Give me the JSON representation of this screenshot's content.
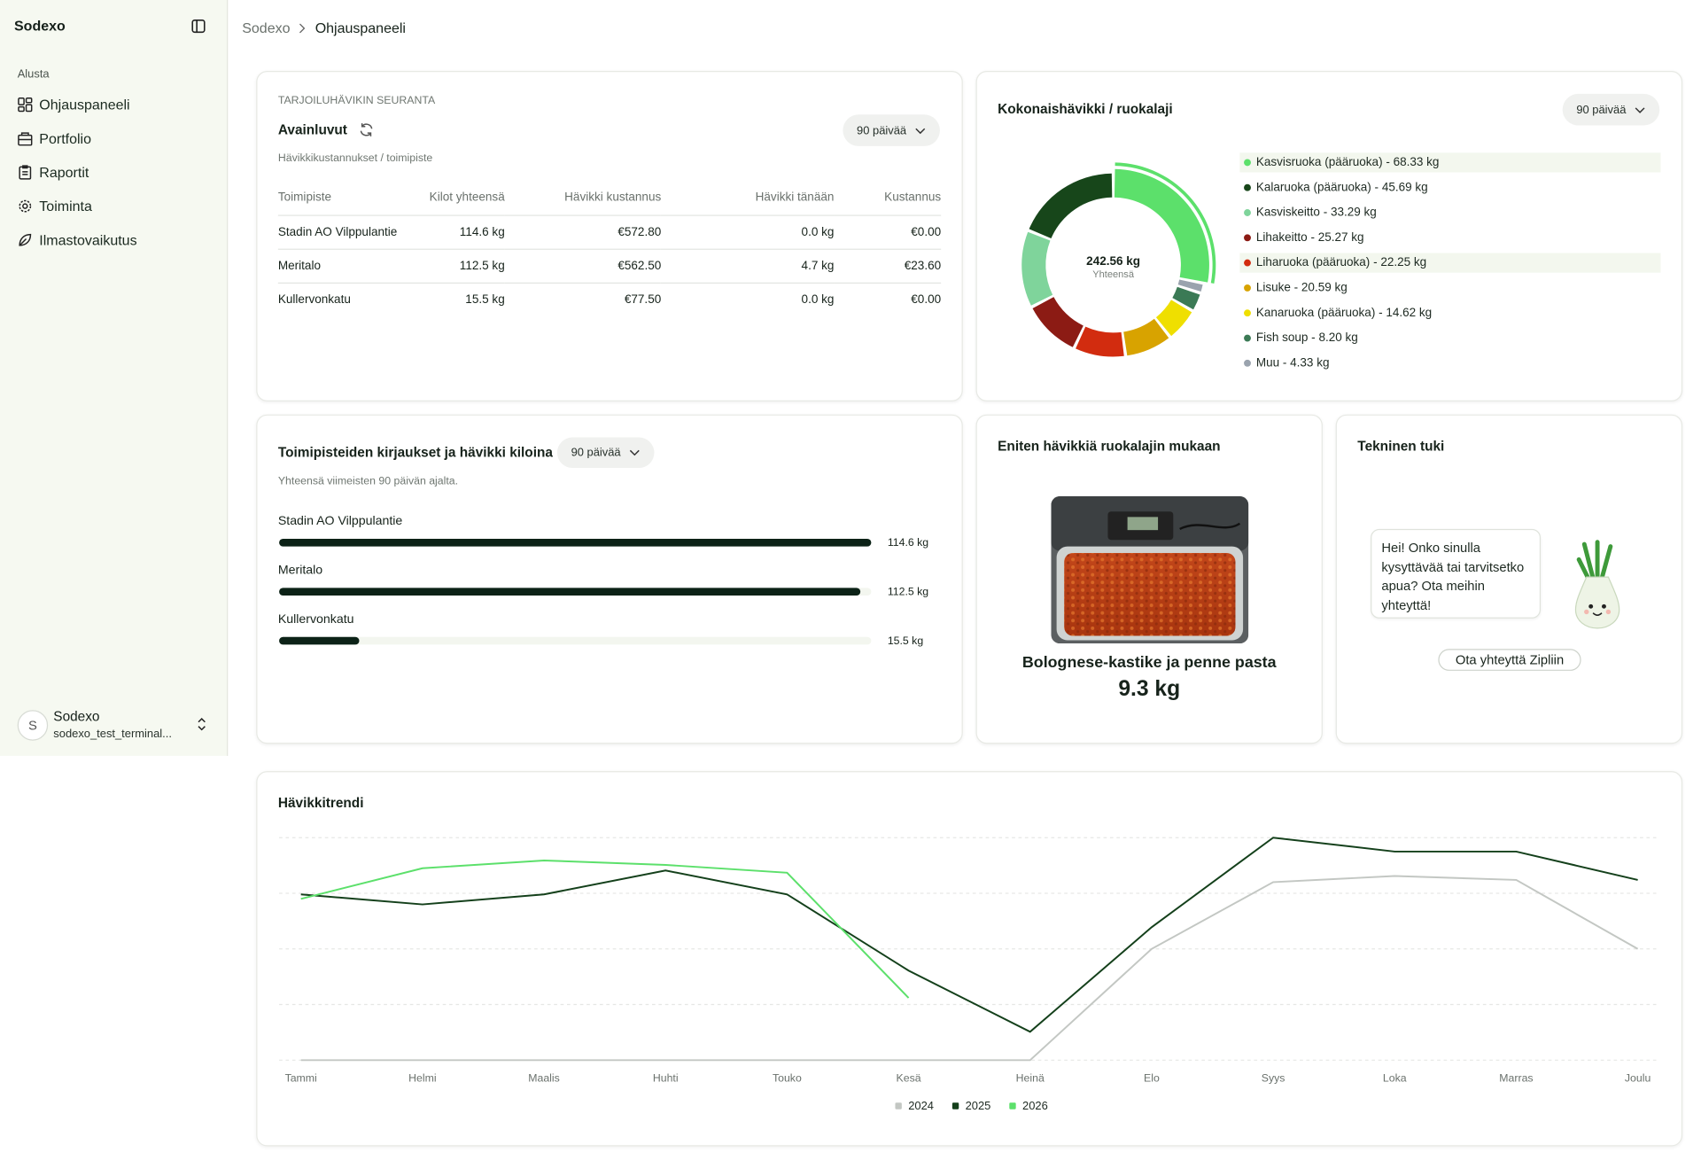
{
  "sidebar": {
    "brand": "Sodexo",
    "section": "Alusta",
    "nav": [
      "Ohjauspaneeli",
      "Portfolio",
      "Raportit",
      "Toiminta",
      "Ilmastovaikutus"
    ],
    "user": {
      "avatar": "S",
      "name": "Sodexo",
      "email": "sodexo_test_terminal..."
    }
  },
  "breadcrumb": [
    "Sodexo",
    "Ohjauspaneeli"
  ],
  "key_figures": {
    "eyebrow": "TARJOILUHÄVIKIN SEURANTA",
    "title": "Avainluvut",
    "period": "90 päivää",
    "subtitle": "Hävikkikustannukset / toimipiste",
    "table": {
      "header": [
        "Toimipiste",
        "Kilot yhteensä",
        "Hävikki kustannus",
        "Hävikki tänään",
        "Kustannus"
      ],
      "rows": [
        [
          "Stadin AO Vilppulantie",
          "114.6 kg",
          "€572.80",
          "0.0 kg",
          "€0.00"
        ],
        [
          "Meritalo",
          "112.5 kg",
          "€562.50",
          "4.7 kg",
          "€23.60"
        ],
        [
          "Kullervonkatu",
          "15.5 kg",
          "€77.50",
          "0.0 kg",
          "€0.00"
        ]
      ]
    }
  },
  "chart_data": [
    {
      "type": "donut",
      "title": "Kokonaishävikki / ruokalaji",
      "period": "90 päivää",
      "total_label": "242.56 kg",
      "total_caption": "Yhteensä",
      "categories": [
        "Kasvisruoka (pääruoka) - 68.33 kg",
        "Kalaruoka (pääruoka) - 45.69 kg",
        "Kasviskeitto - 33.29 kg",
        "Lihakeitto - 25.27 kg",
        "Liharuoka (pääruoka) - 22.25 kg",
        "Lisuke - 20.59 kg",
        "Kanaruoka (pääruoka) - 14.62 kg",
        "Fish soup - 8.20 kg",
        "Muu - 4.33 kg"
      ],
      "values": [
        68.33,
        45.69,
        33.29,
        25.27,
        22.25,
        20.59,
        14.62,
        8.2,
        4.33
      ],
      "colors": [
        "#5ce06b",
        "#17461a",
        "#7fd49b",
        "#8c1b14",
        "#d22c0f",
        "#d8a300",
        "#efdf00",
        "#3b7a55",
        "#9aa3ae"
      ]
    },
    {
      "type": "hbar",
      "title": "Toimipisteiden kirjaukset ja hävikki kiloina",
      "period": "90 päivää",
      "subtitle": "Yhteensä viimeisten 90 päivän ajalta.",
      "categories": [
        "Stadin AO Vilppulantie",
        "Meritalo",
        "Kullervonkatu"
      ],
      "values": [
        114.6,
        112.5,
        15.5
      ],
      "value_labels": [
        "114.6 kg",
        "112.5 kg",
        "15.5 kg"
      ],
      "xlim": [
        0,
        114.6
      ],
      "color": "#0c2217"
    },
    {
      "type": "line",
      "title": "Hävikkitrendi",
      "categories": [
        "Tammi",
        "Helmi",
        "Maalis",
        "Huhti",
        "Touko",
        "Kesä",
        "Heinä",
        "Elo",
        "Syys",
        "Loka",
        "Marras",
        "Joulu"
      ],
      "ylim": [
        0,
        4
      ],
      "series": [
        {
          "name": "2024",
          "color": "#c3c7c3",
          "values": [
            0,
            0,
            0,
            0,
            0,
            0,
            0,
            2.0,
            3.2,
            3.31,
            3.24,
            2.0
          ]
        },
        {
          "name": "2025",
          "color": "#14401b",
          "values": [
            2.98,
            2.8,
            2.98,
            3.41,
            2.98,
            1.61,
            0.51,
            2.39,
            4.0,
            3.75,
            3.75,
            3.24
          ]
        },
        {
          "name": "2026",
          "color": "#5ce06b",
          "values": [
            2.9,
            3.45,
            3.59,
            3.51,
            3.37,
            1.12,
            null,
            null,
            null,
            null,
            null,
            null
          ]
        }
      ]
    }
  ],
  "top_dish": {
    "title": "Eniten hävikkiä ruokalajin mukaan",
    "dish": "Bolognese-kastike ja penne pasta",
    "amount": "9.3 kg"
  },
  "support": {
    "title": "Tekninen tuki",
    "message": "Hei! Onko sinulla kysyttävää tai tarvitsetko apua? Ota meihin yhteyttä!",
    "button": "Ota yhteyttä Zipliin"
  }
}
